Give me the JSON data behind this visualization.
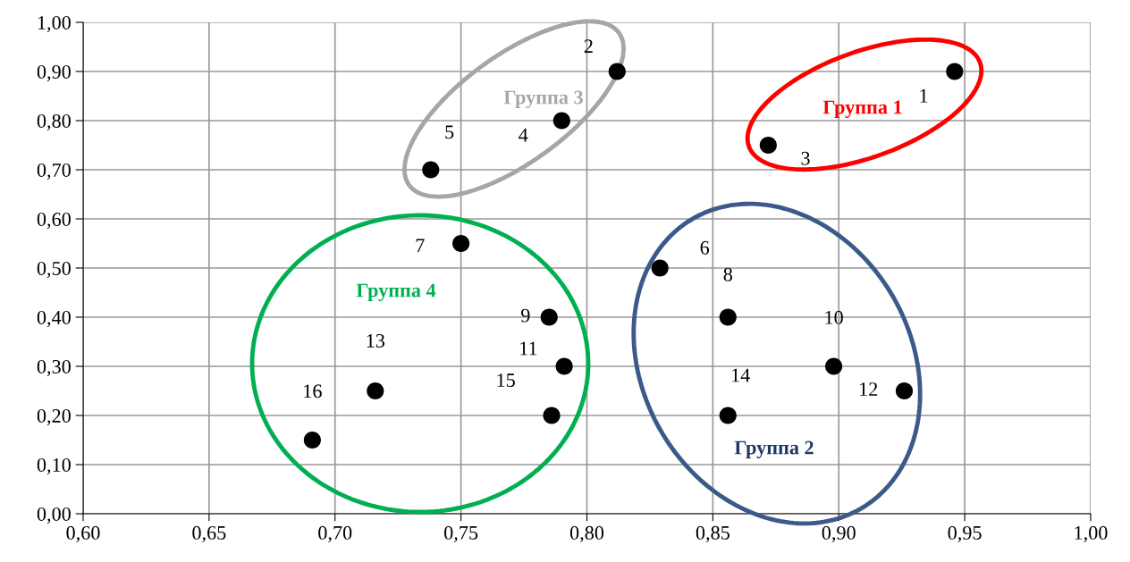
{
  "chart_data": {
    "type": "scatter",
    "x": [
      0.946,
      0.812,
      0.872,
      0.79,
      0.738,
      0.829,
      0.75,
      0.856,
      0.785,
      0.898,
      0.791,
      0.926,
      0.716,
      0.856,
      0.786,
      0.691
    ],
    "values": [
      0.9,
      0.9,
      0.75,
      0.8,
      0.7,
      0.5,
      0.55,
      0.4,
      0.4,
      0.3,
      0.3,
      0.25,
      0.25,
      0.2,
      0.2,
      0.15
    ],
    "color": "#000000",
    "marker": "circle",
    "grid": true,
    "xlim": [
      0.6,
      1.0
    ],
    "xticks": [
      {
        "value": 0.6,
        "label": "0,60"
      },
      {
        "value": 0.65,
        "label": "0,65"
      },
      {
        "value": 0.7,
        "label": "0,70"
      },
      {
        "value": 0.75,
        "label": "0,75"
      },
      {
        "value": 0.8,
        "label": "0,80"
      },
      {
        "value": 0.85,
        "label": "0,85"
      },
      {
        "value": 0.9,
        "label": "0,90"
      },
      {
        "value": 0.95,
        "label": "0,95"
      },
      {
        "value": 1.0,
        "label": "1,00"
      }
    ],
    "ylim": [
      0.0,
      1.0
    ],
    "yticks": [
      {
        "value": 0.0,
        "label": "0,00"
      },
      {
        "value": 0.1,
        "label": "0,10"
      },
      {
        "value": 0.2,
        "label": "0,20"
      },
      {
        "value": 0.3,
        "label": "0,30"
      },
      {
        "value": 0.4,
        "label": "0,40"
      },
      {
        "value": 0.5,
        "label": "0,50"
      },
      {
        "value": 0.6,
        "label": "0,60"
      },
      {
        "value": 0.7,
        "label": "0,70"
      },
      {
        "value": 0.8,
        "label": "0,80"
      },
      {
        "value": 0.9,
        "label": "0,90"
      },
      {
        "value": 1.0,
        "label": "1,00"
      }
    ],
    "annotations": [
      {
        "text": "1",
        "x": 0.946,
        "y": 0.9
      },
      {
        "text": "2",
        "x": 0.812,
        "y": 0.9
      },
      {
        "text": "3",
        "x": 0.872,
        "y": 0.75
      },
      {
        "text": "4",
        "x": 0.79,
        "y": 0.8
      },
      {
        "text": "5",
        "x": 0.738,
        "y": 0.7
      },
      {
        "text": "6",
        "x": 0.829,
        "y": 0.5
      },
      {
        "text": "7",
        "x": 0.75,
        "y": 0.55
      },
      {
        "text": "8",
        "x": 0.856,
        "y": 0.4
      },
      {
        "text": "9",
        "x": 0.785,
        "y": 0.4
      },
      {
        "text": "10",
        "x": 0.898,
        "y": 0.3
      },
      {
        "text": "11",
        "x": 0.791,
        "y": 0.3
      },
      {
        "text": "12",
        "x": 0.926,
        "y": 0.25
      },
      {
        "text": "13",
        "x": 0.716,
        "y": 0.25
      },
      {
        "text": "14",
        "x": 0.856,
        "y": 0.2
      },
      {
        "text": "15",
        "x": 0.786,
        "y": 0.2
      },
      {
        "text": "16",
        "x": 0.691,
        "y": 0.15
      },
      "Группа 1",
      "Группа 3",
      "Группа 4",
      "Группа 2"
    ]
  }
}
